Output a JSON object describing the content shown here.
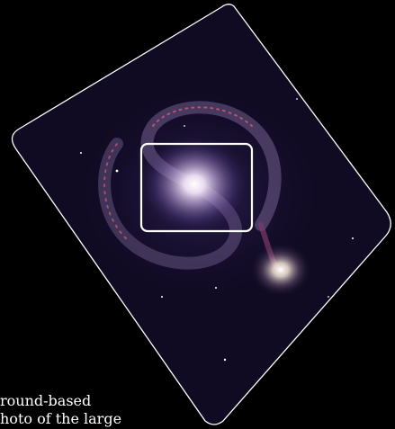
{
  "caption": {
    "line1": "round-based",
    "line2": "hoto of the large"
  },
  "image": {
    "subject": "spiral-galaxy-photo",
    "border_color": "#ffffff",
    "background_color": "#000000",
    "sky_color": "#100a22",
    "highlight_box_color": "#ffffff"
  }
}
